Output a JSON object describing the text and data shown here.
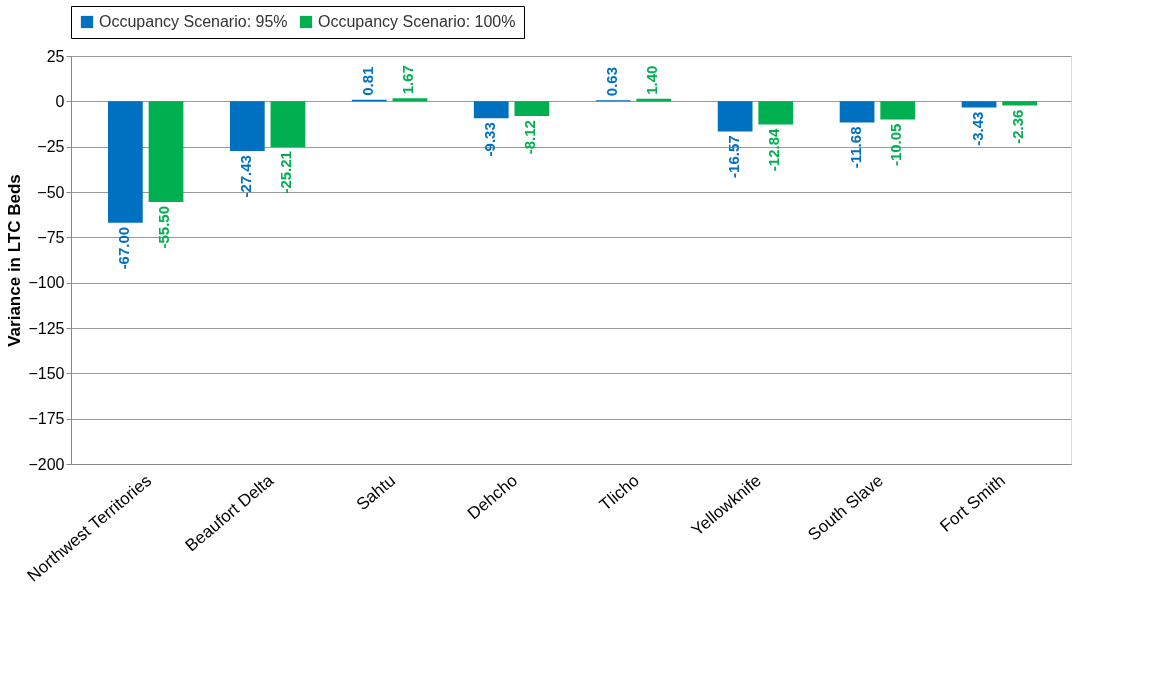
{
  "chart_data": {
    "type": "bar",
    "ylabel": "Variance in LTC Beds",
    "categories": [
      "Northwest Territories",
      "Beaufort Delta",
      "Sahtu",
      "Dehcho",
      "Tlicho",
      "Yellowknife",
      "South Slave",
      "Fort Smith"
    ],
    "series": [
      {
        "name": "Occupancy Scenario: 95%",
        "color": "#0070c0",
        "values": [
          -67.0,
          -27.43,
          0.81,
          -9.33,
          0.63,
          -16.57,
          -11.68,
          -3.43
        ],
        "value_labels": [
          "-67.00",
          "-27.43",
          "0.81",
          "-9.33",
          "0.63",
          "-16.57",
          "-11.68",
          "-3.43"
        ]
      },
      {
        "name": "Occupancy Scenario: 100%",
        "color": "#00b050",
        "values": [
          -55.5,
          -25.21,
          1.67,
          -8.12,
          1.4,
          -12.84,
          -10.05,
          -2.36
        ],
        "value_labels": [
          "-55.50",
          "-25.21",
          "1.67",
          "-8.12",
          "1.40",
          "-12.84",
          "-10.05",
          "-2.36"
        ]
      }
    ],
    "ylim": [
      -200,
      25
    ],
    "yticks": [
      -200,
      -175,
      -150,
      -125,
      -100,
      -75,
      -50,
      -25,
      0,
      25
    ],
    "grid": "y",
    "legend": "top"
  }
}
